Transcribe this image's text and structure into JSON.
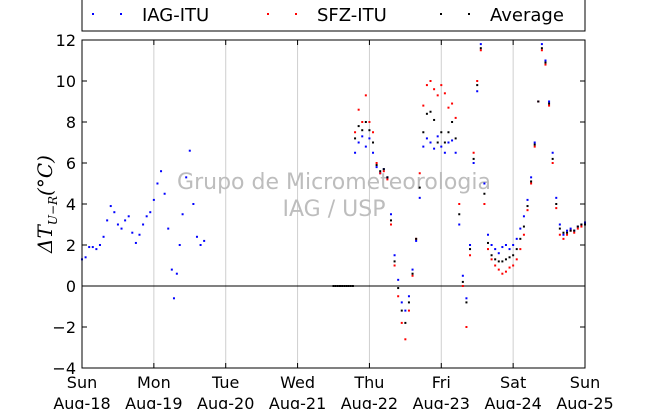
{
  "chart_data": {
    "type": "scatter",
    "title": "",
    "xlabel": "",
    "ylabel": "ΔT_{U−R}(°C)",
    "ylabel_parts": {
      "main": "ΔT",
      "sub": "U−R",
      "unit": "(°C)"
    },
    "xlim": [
      0,
      7
    ],
    "ylim": [
      -4,
      12
    ],
    "yticks": [
      -4,
      -2,
      0,
      2,
      4,
      6,
      8,
      10,
      12
    ],
    "ytick_labels": [
      "−4",
      "−2",
      "0",
      "2",
      "4",
      "6",
      "8",
      "10",
      "12"
    ],
    "xticks": [
      0,
      1,
      2,
      3,
      4,
      5,
      6,
      7
    ],
    "xtick_labels": [
      [
        "Sun",
        "Aug-18"
      ],
      [
        "Mon",
        "Aug-19"
      ],
      [
        "Tue",
        "Aug-20"
      ],
      [
        "Wed",
        "Aug-21"
      ],
      [
        "Thu",
        "Aug-22"
      ],
      [
        "Fri",
        "Aug-23"
      ],
      [
        "Sat",
        "Aug-24"
      ],
      [
        "Sun",
        "Aug-25"
      ]
    ],
    "grid": "x-only",
    "zero_line": true,
    "legend_position": "top, outside",
    "watermark": [
      "Grupo de Micrometeorologia",
      "IAG / USP"
    ],
    "series": [
      {
        "name": "IAG-ITU",
        "color": "#0000ff",
        "points": [
          [
            0.0,
            1.3
          ],
          [
            0.05,
            1.4
          ],
          [
            0.1,
            1.9
          ],
          [
            0.15,
            1.9
          ],
          [
            0.2,
            1.8
          ],
          [
            0.25,
            2.0
          ],
          [
            0.3,
            2.4
          ],
          [
            0.35,
            3.2
          ],
          [
            0.4,
            3.9
          ],
          [
            0.45,
            3.6
          ],
          [
            0.5,
            3.0
          ],
          [
            0.55,
            2.8
          ],
          [
            0.6,
            3.2
          ],
          [
            0.65,
            3.4
          ],
          [
            0.7,
            2.6
          ],
          [
            0.75,
            2.1
          ],
          [
            0.8,
            2.5
          ],
          [
            0.85,
            3.0
          ],
          [
            0.9,
            3.4
          ],
          [
            0.95,
            3.6
          ],
          [
            1.0,
            4.2
          ],
          [
            1.05,
            5.0
          ],
          [
            1.1,
            5.6
          ],
          [
            1.15,
            4.5
          ],
          [
            1.2,
            2.8
          ],
          [
            1.25,
            0.8
          ],
          [
            1.28,
            -0.6
          ],
          [
            1.32,
            0.6
          ],
          [
            1.36,
            2.0
          ],
          [
            1.4,
            3.5
          ],
          [
            1.45,
            5.3
          ],
          [
            1.5,
            6.6
          ],
          [
            1.55,
            4.0
          ],
          [
            1.6,
            2.4
          ],
          [
            1.65,
            2.0
          ],
          [
            1.7,
            2.2
          ],
          [
            3.8,
            6.5
          ],
          [
            3.85,
            7.0
          ],
          [
            3.9,
            7.3
          ],
          [
            3.95,
            6.8
          ],
          [
            4.0,
            7.2
          ],
          [
            4.05,
            6.5
          ],
          [
            4.1,
            5.8
          ],
          [
            4.15,
            5.5
          ],
          [
            4.2,
            5.7
          ],
          [
            4.25,
            5.3
          ],
          [
            4.3,
            3.5
          ],
          [
            4.35,
            1.5
          ],
          [
            4.4,
            0.3
          ],
          [
            4.45,
            -0.8
          ],
          [
            4.5,
            -1.2
          ],
          [
            4.55,
            -0.5
          ],
          [
            4.6,
            0.8
          ],
          [
            4.65,
            2.2
          ],
          [
            4.7,
            4.3
          ],
          [
            4.75,
            6.8
          ],
          [
            4.8,
            7.2
          ],
          [
            4.85,
            7.0
          ],
          [
            4.9,
            6.7
          ],
          [
            4.95,
            7.3
          ],
          [
            5.0,
            6.8
          ],
          [
            5.05,
            6.5
          ],
          [
            5.1,
            7.0
          ],
          [
            5.15,
            7.1
          ],
          [
            5.2,
            6.5
          ],
          [
            5.25,
            3.0
          ],
          [
            5.3,
            0.5
          ],
          [
            5.35,
            -0.6
          ],
          [
            5.4,
            2.0
          ],
          [
            5.45,
            6.0
          ],
          [
            5.5,
            9.5
          ],
          [
            5.55,
            11.8
          ],
          [
            5.6,
            5.0
          ],
          [
            5.65,
            2.5
          ],
          [
            5.7,
            2.0
          ],
          [
            5.75,
            1.8
          ],
          [
            5.8,
            1.6
          ],
          [
            5.85,
            1.9
          ],
          [
            5.9,
            2.0
          ],
          [
            5.95,
            1.8
          ],
          [
            6.0,
            2.0
          ],
          [
            6.05,
            2.3
          ],
          [
            6.1,
            2.8
          ],
          [
            6.15,
            3.4
          ],
          [
            6.2,
            4.2
          ],
          [
            6.25,
            5.3
          ],
          [
            6.3,
            7.0
          ],
          [
            6.35,
            9.0
          ],
          [
            6.4,
            11.8
          ],
          [
            6.45,
            11.0
          ],
          [
            6.5,
            9.0
          ],
          [
            6.55,
            6.5
          ],
          [
            6.6,
            4.3
          ],
          [
            6.65,
            3.0
          ],
          [
            6.7,
            2.5
          ],
          [
            6.75,
            2.7
          ],
          [
            6.8,
            2.8
          ],
          [
            6.85,
            2.7
          ],
          [
            6.9,
            2.9
          ],
          [
            6.95,
            3.0
          ],
          [
            7.0,
            3.1
          ]
        ]
      },
      {
        "name": "SFZ-ITU",
        "color": "#ff0000",
        "points": [
          [
            3.8,
            7.5
          ],
          [
            3.85,
            8.6
          ],
          [
            3.9,
            8.0
          ],
          [
            3.95,
            9.3
          ],
          [
            4.0,
            8.0
          ],
          [
            4.05,
            7.5
          ],
          [
            4.1,
            6.0
          ],
          [
            4.15,
            5.5
          ],
          [
            4.2,
            5.6
          ],
          [
            4.25,
            5.2
          ],
          [
            4.3,
            3.0
          ],
          [
            4.35,
            1.0
          ],
          [
            4.4,
            -0.5
          ],
          [
            4.45,
            -1.8
          ],
          [
            4.5,
            -2.6
          ],
          [
            4.55,
            -1.2
          ],
          [
            4.6,
            0.5
          ],
          [
            4.65,
            2.3
          ],
          [
            4.7,
            5.5
          ],
          [
            4.75,
            8.8
          ],
          [
            4.8,
            9.8
          ],
          [
            4.85,
            10.0
          ],
          [
            4.9,
            9.6
          ],
          [
            4.95,
            9.3
          ],
          [
            5.0,
            9.8
          ],
          [
            5.05,
            9.4
          ],
          [
            5.1,
            8.7
          ],
          [
            5.15,
            8.9
          ],
          [
            5.2,
            8.2
          ],
          [
            5.25,
            4.0
          ],
          [
            5.3,
            0.0
          ],
          [
            5.35,
            -2.0
          ],
          [
            5.4,
            1.5
          ],
          [
            5.45,
            6.5
          ],
          [
            5.5,
            10.0
          ],
          [
            5.55,
            11.5
          ],
          [
            5.6,
            4.0
          ],
          [
            5.65,
            1.8
          ],
          [
            5.7,
            1.3
          ],
          [
            5.75,
            1.0
          ],
          [
            5.8,
            0.8
          ],
          [
            5.85,
            0.6
          ],
          [
            5.9,
            0.7
          ],
          [
            5.95,
            0.9
          ],
          [
            6.0,
            1.0
          ],
          [
            6.05,
            1.3
          ],
          [
            6.1,
            1.8
          ],
          [
            6.15,
            2.5
          ],
          [
            6.2,
            3.7
          ],
          [
            6.25,
            5.0
          ],
          [
            6.3,
            6.8
          ],
          [
            6.35,
            9.0
          ],
          [
            6.4,
            11.5
          ],
          [
            6.45,
            10.8
          ],
          [
            6.5,
            8.8
          ],
          [
            6.55,
            6.0
          ],
          [
            6.6,
            3.8
          ],
          [
            6.65,
            2.5
          ],
          [
            6.7,
            2.3
          ],
          [
            6.75,
            2.5
          ],
          [
            6.8,
            2.7
          ],
          [
            6.85,
            2.6
          ],
          [
            6.9,
            2.8
          ],
          [
            6.95,
            2.9
          ],
          [
            7.0,
            3.0
          ]
        ]
      },
      {
        "name": "Average",
        "color": "#000000",
        "points": [
          [
            3.5,
            0.0
          ],
          [
            3.53,
            0.0
          ],
          [
            3.56,
            0.0
          ],
          [
            3.59,
            0.0
          ],
          [
            3.62,
            0.0
          ],
          [
            3.65,
            0.0
          ],
          [
            3.68,
            0.0
          ],
          [
            3.71,
            0.0
          ],
          [
            3.74,
            0.0
          ],
          [
            3.77,
            0.0
          ],
          [
            3.8,
            7.2
          ],
          [
            3.85,
            7.8
          ],
          [
            3.9,
            7.6
          ],
          [
            3.95,
            8.0
          ],
          [
            4.0,
            7.6
          ],
          [
            4.05,
            7.0
          ],
          [
            4.1,
            5.9
          ],
          [
            4.15,
            5.6
          ],
          [
            4.2,
            5.7
          ],
          [
            4.25,
            5.3
          ],
          [
            4.3,
            3.2
          ],
          [
            4.35,
            1.2
          ],
          [
            4.4,
            -0.1
          ],
          [
            4.45,
            -1.2
          ],
          [
            4.5,
            -1.8
          ],
          [
            4.55,
            -0.8
          ],
          [
            4.6,
            0.6
          ],
          [
            4.65,
            2.3
          ],
          [
            4.7,
            4.8
          ],
          [
            4.75,
            7.5
          ],
          [
            4.8,
            8.4
          ],
          [
            4.85,
            8.5
          ],
          [
            4.9,
            8.1
          ],
          [
            4.95,
            7.0
          ],
          [
            5.0,
            7.5
          ],
          [
            5.05,
            7.0
          ],
          [
            5.1,
            7.5
          ],
          [
            5.15,
            8.0
          ],
          [
            5.2,
            7.2
          ],
          [
            5.25,
            3.5
          ],
          [
            5.3,
            0.2
          ],
          [
            5.35,
            -0.8
          ],
          [
            5.4,
            1.8
          ],
          [
            5.45,
            6.2
          ],
          [
            5.5,
            9.8
          ],
          [
            5.55,
            11.6
          ],
          [
            5.6,
            4.5
          ],
          [
            5.65,
            2.1
          ],
          [
            5.7,
            1.5
          ],
          [
            5.75,
            1.3
          ],
          [
            5.8,
            1.2
          ],
          [
            5.85,
            1.2
          ],
          [
            5.9,
            1.3
          ],
          [
            5.95,
            1.4
          ],
          [
            6.0,
            1.5
          ],
          [
            6.05,
            1.8
          ],
          [
            6.1,
            2.3
          ],
          [
            6.15,
            2.9
          ],
          [
            6.2,
            3.9
          ],
          [
            6.25,
            5.1
          ],
          [
            6.3,
            6.9
          ],
          [
            6.35,
            9.0
          ],
          [
            6.4,
            11.6
          ],
          [
            6.45,
            10.9
          ],
          [
            6.5,
            8.9
          ],
          [
            6.55,
            6.2
          ],
          [
            6.6,
            4.0
          ],
          [
            6.65,
            2.8
          ],
          [
            6.7,
            2.6
          ],
          [
            6.75,
            2.6
          ],
          [
            6.8,
            2.7
          ],
          [
            6.85,
            2.7
          ],
          [
            6.9,
            2.9
          ],
          [
            6.95,
            3.0
          ],
          [
            7.0,
            3.0
          ]
        ]
      }
    ]
  }
}
